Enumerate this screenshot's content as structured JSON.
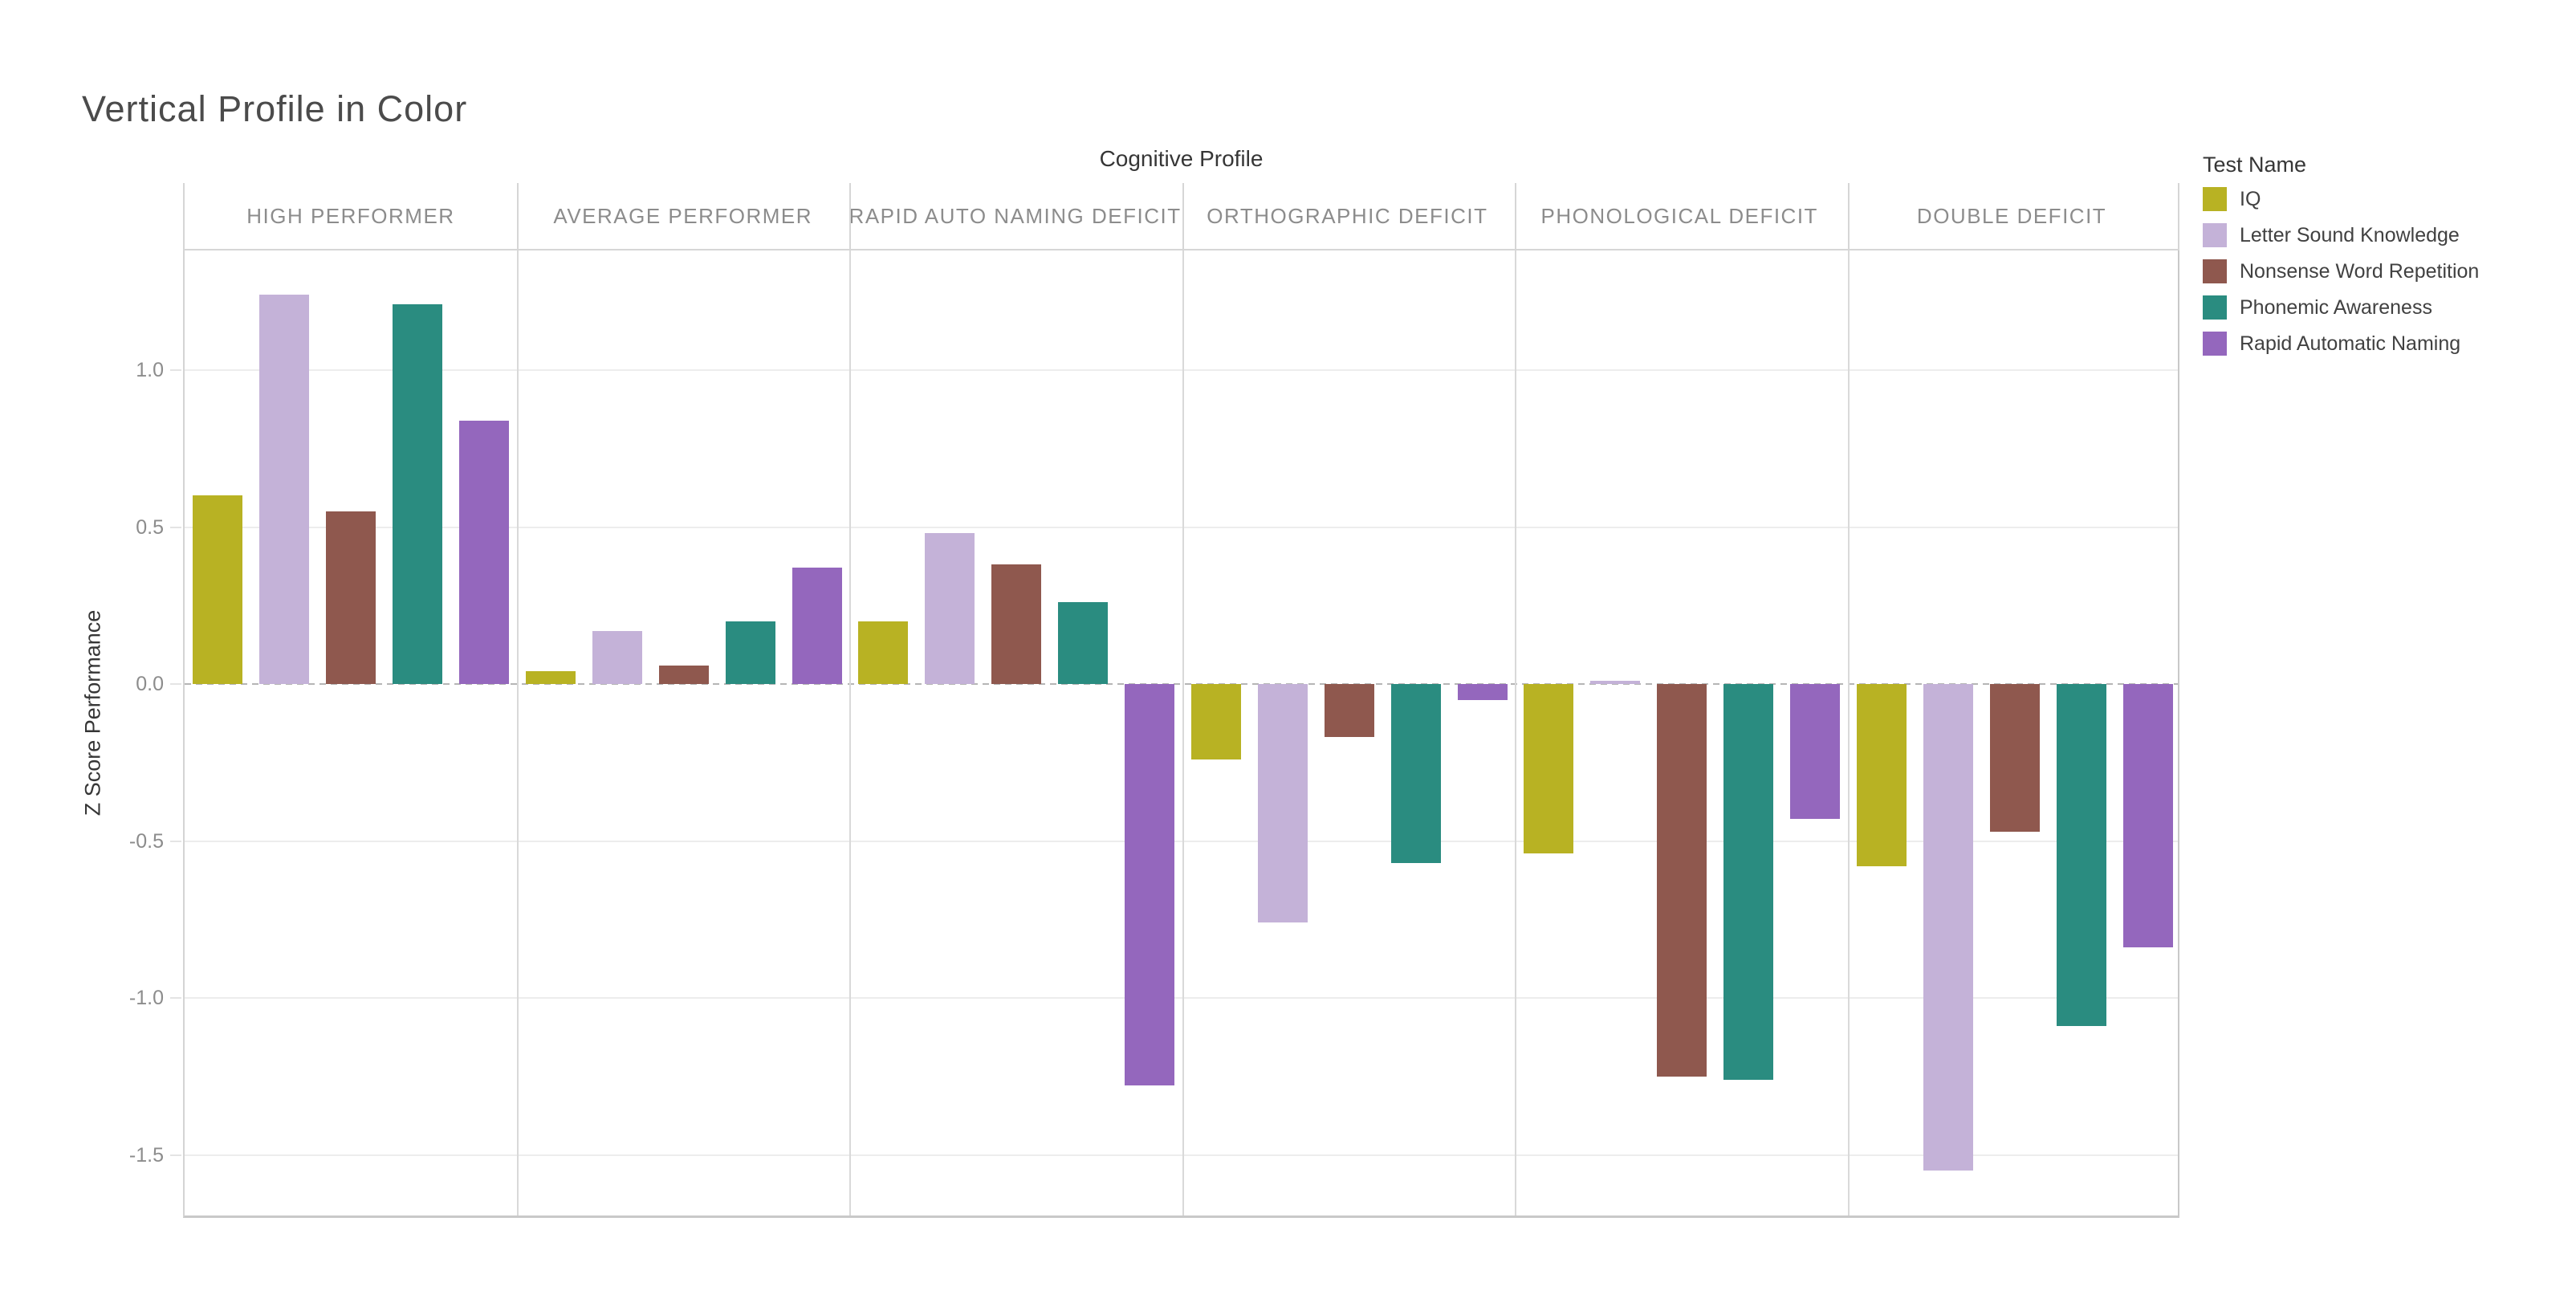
{
  "page": {
    "title": "Vertical Profile in Color",
    "background": "#ffffff"
  },
  "chart_data": {
    "type": "bar",
    "title": "Cognitive Profile",
    "ylabel": "Z Score Performance",
    "legend_title": "Test Name",
    "legend_position": "right",
    "grid": true,
    "zero_line": "dashed",
    "categories": [
      "HIGH PERFORMER",
      "AVERAGE PERFORMER",
      "RAPID AUTO NAMING DEFICIT",
      "ORTHOGRAPHIC DEFICIT",
      "PHONOLOGICAL DEFICIT",
      "DOUBLE DEFICIT"
    ],
    "series": [
      {
        "name": "IQ",
        "color": "#b8b223",
        "values": [
          0.6,
          0.04,
          0.2,
          -0.24,
          -0.54,
          -0.58
        ]
      },
      {
        "name": "Letter Sound Knowledge",
        "color": "#c4b2d8",
        "values": [
          1.24,
          0.17,
          0.48,
          -0.76,
          0.01,
          -1.55
        ]
      },
      {
        "name": "Nonsense Word Repetition",
        "color": "#8f584e",
        "values": [
          0.55,
          0.06,
          0.38,
          -0.17,
          -1.25,
          -0.47
        ]
      },
      {
        "name": "Phonemic Awareness",
        "color": "#2a8c80",
        "values": [
          1.21,
          0.2,
          0.26,
          -0.57,
          -1.26,
          -1.09
        ]
      },
      {
        "name": "Rapid Automatic Naming",
        "color": "#9467bd",
        "values": [
          0.84,
          0.37,
          -1.28,
          -0.05,
          -0.43,
          -0.84
        ]
      }
    ],
    "yticks": [
      1.0,
      0.5,
      0.0,
      -0.5,
      -1.0,
      -1.5
    ],
    "ylim": [
      -1.7,
      1.38
    ],
    "xlabel": ""
  }
}
